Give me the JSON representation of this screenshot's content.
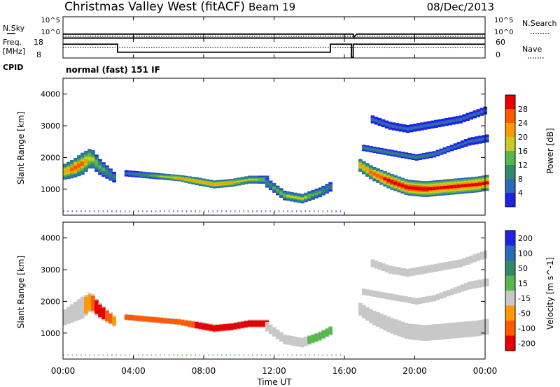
{
  "header": {
    "title": "Christmas Valley West (fitACF)",
    "beam": "Beam 19",
    "date": "08/Dec/2013"
  },
  "side_labels": {
    "nsky": "N.Sky",
    "nsearch": "N.Search",
    "freq_line1": "Freq.",
    "freq_line2": "[MHz]",
    "nave": "Nave",
    "cpid": "CPID",
    "cpid_text": "normal (fast) 151 IF"
  },
  "noise_ticks": {
    "left": [
      "10^5",
      "10^0"
    ],
    "right": [
      "10^5",
      "10^0"
    ]
  },
  "freq_ticks": {
    "left": [
      "18",
      "8"
    ],
    "right": [
      "60",
      "0"
    ]
  },
  "chart_data": [
    {
      "id": "noise",
      "type": "line",
      "series": [
        {
          "name": "N.Sky",
          "style": "solid",
          "x_hours": [
            0,
            0.05,
            16.5,
            16.55,
            16.7,
            24
          ],
          "y_log10": [
            0.7,
            0.75,
            0.75,
            0.0,
            0.75,
            0.75
          ]
        },
        {
          "name": "N.Search",
          "style": "dotted",
          "x_hours": [
            0,
            24
          ],
          "y_log10": [
            0.2,
            0.2
          ]
        }
      ],
      "ylim_log10": [
        0,
        5
      ]
    },
    {
      "id": "frequency",
      "type": "line",
      "series": [
        {
          "name": "Freq.",
          "style": "solid",
          "x_hours": [
            0,
            3.1,
            3.1,
            15.2,
            15.2,
            16.4,
            16.4,
            16.5,
            16.5,
            24
          ],
          "y": [
            15.2,
            15.2,
            10.8,
            10.8,
            15.2,
            15.2,
            8,
            8,
            15.2,
            15.2
          ]
        },
        {
          "name": "Nave",
          "style": "dotted",
          "x_hours": [
            0,
            24
          ],
          "y": [
            33,
            33
          ],
          "axis": "right"
        }
      ],
      "ylim": [
        8,
        18
      ],
      "ylim_right": [
        0,
        60
      ]
    },
    {
      "id": "power",
      "type": "heatmap",
      "ylabel": "Slant Range [km]",
      "yticks": [
        "1000",
        "2000",
        "3000",
        "4000"
      ],
      "ylim": [
        180,
        4500
      ],
      "colorbar_label": "Power [dB]",
      "colorbar_ticks": [
        "4",
        "8",
        "12",
        "16",
        "20",
        "24",
        "28"
      ],
      "colorbar_range": [
        0,
        32
      ],
      "colors": [
        "#1f22e0",
        "#2e68b8",
        "#2f8a6c",
        "#55b84c",
        "#c8cc22",
        "#ff9a00",
        "#ff5a00",
        "#e80000"
      ],
      "bands": [
        {
          "x_hours": [
            0,
            0.5,
            1,
            1.5,
            2,
            2.5,
            3
          ],
          "center_km": [
            1550,
            1650,
            1800,
            2000,
            1700,
            1500,
            1300
          ],
          "thickness_km": [
            500,
            600,
            700,
            600,
            500,
            400,
            300
          ],
          "peak_db": [
            22,
            26,
            24,
            18,
            14,
            10,
            8
          ]
        },
        {
          "x_hours": [
            3.5,
            4.5,
            5.5,
            6.5,
            7.5,
            8.5,
            9.5,
            10.5,
            11.5
          ],
          "center_km": [
            1500,
            1450,
            1400,
            1350,
            1250,
            1150,
            1200,
            1300,
            1300
          ],
          "thickness_km": [
            200,
            200,
            200,
            200,
            250,
            250,
            250,
            250,
            250
          ],
          "peak_db": [
            6,
            10,
            16,
            22,
            24,
            22,
            20,
            18,
            14
          ]
        },
        {
          "x_hours": [
            11.5,
            12.5,
            13.5,
            14.5,
            15.2
          ],
          "center_km": [
            1200,
            800,
            700,
            900,
            1100
          ],
          "thickness_km": [
            300,
            300,
            300,
            300,
            300
          ],
          "peak_db": [
            10,
            16,
            18,
            12,
            8
          ]
        },
        {
          "x_hours": [
            16.8,
            17.5,
            18.5,
            19.5,
            20.5,
            21.5,
            22.5,
            23.5,
            24
          ],
          "center_km": [
            1750,
            1500,
            1250,
            1050,
            1000,
            1050,
            1100,
            1150,
            1200
          ],
          "thickness_km": [
            400,
            450,
            500,
            500,
            500,
            500,
            500,
            500,
            500
          ],
          "peak_db": [
            20,
            26,
            30,
            30,
            30,
            28,
            28,
            28,
            28
          ]
        },
        {
          "x_hours": [
            17,
            18,
            19,
            20,
            21,
            22,
            23,
            24
          ],
          "center_km": [
            2300,
            2200,
            2100,
            2000,
            2100,
            2300,
            2500,
            2600
          ],
          "thickness_km": [
            200,
            200,
            200,
            200,
            200,
            200,
            250,
            250
          ],
          "peak_db": [
            8,
            8,
            8,
            8,
            8,
            6,
            6,
            6
          ]
        },
        {
          "x_hours": [
            17.5,
            18.5,
            19.5,
            20.5,
            21.5,
            22.5,
            23.5,
            24
          ],
          "center_km": [
            3200,
            3000,
            2900,
            3000,
            3100,
            3200,
            3400,
            3500
          ],
          "thickness_km": [
            250,
            250,
            250,
            250,
            250,
            250,
            250,
            250
          ],
          "peak_db": [
            5,
            5,
            5,
            5,
            5,
            5,
            5,
            5
          ]
        }
      ]
    },
    {
      "id": "velocity",
      "type": "heatmap",
      "ylabel": "Slant Range [km]",
      "yticks": [
        "1000",
        "2000",
        "3000",
        "4000"
      ],
      "ylim": [
        180,
        4500
      ],
      "colorbar_label": "Velocity [m s^-1]",
      "colorbar_ticks": [
        "200",
        "100",
        "50",
        "15",
        "-15",
        "-50",
        "-100",
        "-200"
      ],
      "colorbar_range": [
        -250,
        250
      ],
      "colors": [
        "#1f22e0",
        "#2e68b8",
        "#2f8a6c",
        "#55b84c",
        "#c8c8c8",
        "#ff9a00",
        "#ff5a00",
        "#e80000"
      ],
      "bands": [
        {
          "x_hours": [
            0,
            0.5,
            1,
            1.5,
            2,
            2.5,
            3
          ],
          "center_km": [
            1500,
            1650,
            1800,
            2000,
            1700,
            1500,
            1300
          ],
          "thickness_km": [
            500,
            600,
            700,
            600,
            500,
            400,
            300
          ],
          "vel": [
            0,
            0,
            -10,
            -60,
            -150,
            -60,
            -40
          ]
        },
        {
          "x_hours": [
            3.5,
            4.5,
            5.5,
            6.5,
            7.5,
            8.5,
            9.5,
            10.5,
            11.5
          ],
          "center_km": [
            1500,
            1450,
            1400,
            1350,
            1250,
            1150,
            1200,
            1300,
            1300
          ],
          "thickness_km": [
            200,
            200,
            200,
            200,
            250,
            250,
            250,
            250,
            250
          ],
          "vel": [
            -60,
            -80,
            -100,
            -100,
            -100,
            -110,
            -120,
            -120,
            -120
          ]
        },
        {
          "x_hours": [
            11.5,
            12.5,
            13.5,
            14.5,
            15.2
          ],
          "center_km": [
            1200,
            800,
            700,
            900,
            1100
          ],
          "thickness_km": [
            300,
            300,
            300,
            300,
            300
          ],
          "vel": [
            0,
            0,
            0,
            40,
            40
          ]
        },
        {
          "x_hours": [
            16.8,
            17.5,
            18.5,
            19.5,
            20.5,
            21.5,
            22.5,
            23.5,
            24
          ],
          "center_km": [
            1750,
            1500,
            1250,
            1050,
            1000,
            1050,
            1100,
            1150,
            1200
          ],
          "thickness_km": [
            400,
            450,
            500,
            500,
            500,
            500,
            500,
            500,
            500
          ],
          "vel": [
            0,
            0,
            0,
            0,
            0,
            0,
            0,
            0,
            0
          ]
        },
        {
          "x_hours": [
            17,
            18,
            19,
            20,
            21,
            22,
            23,
            24
          ],
          "center_km": [
            2300,
            2200,
            2100,
            2000,
            2100,
            2300,
            2500,
            2600
          ],
          "thickness_km": [
            200,
            200,
            200,
            200,
            200,
            200,
            250,
            250
          ],
          "vel": [
            0,
            0,
            0,
            0,
            0,
            0,
            0,
            0
          ]
        },
        {
          "x_hours": [
            17.5,
            18.5,
            19.5,
            20.5,
            21.5,
            22.5,
            23.5,
            24
          ],
          "center_km": [
            3200,
            3000,
            2900,
            3000,
            3100,
            3200,
            3400,
            3500
          ],
          "thickness_km": [
            250,
            250,
            250,
            250,
            250,
            250,
            250,
            250
          ],
          "vel": [
            0,
            0,
            0,
            0,
            0,
            0,
            0,
            0
          ]
        }
      ]
    }
  ],
  "xaxis": {
    "label": "Time UT",
    "ticks": [
      "00:00",
      "04:00",
      "08:00",
      "12:00",
      "16:00",
      "20:00",
      "00:00"
    ],
    "range_hours": [
      0,
      24
    ]
  }
}
